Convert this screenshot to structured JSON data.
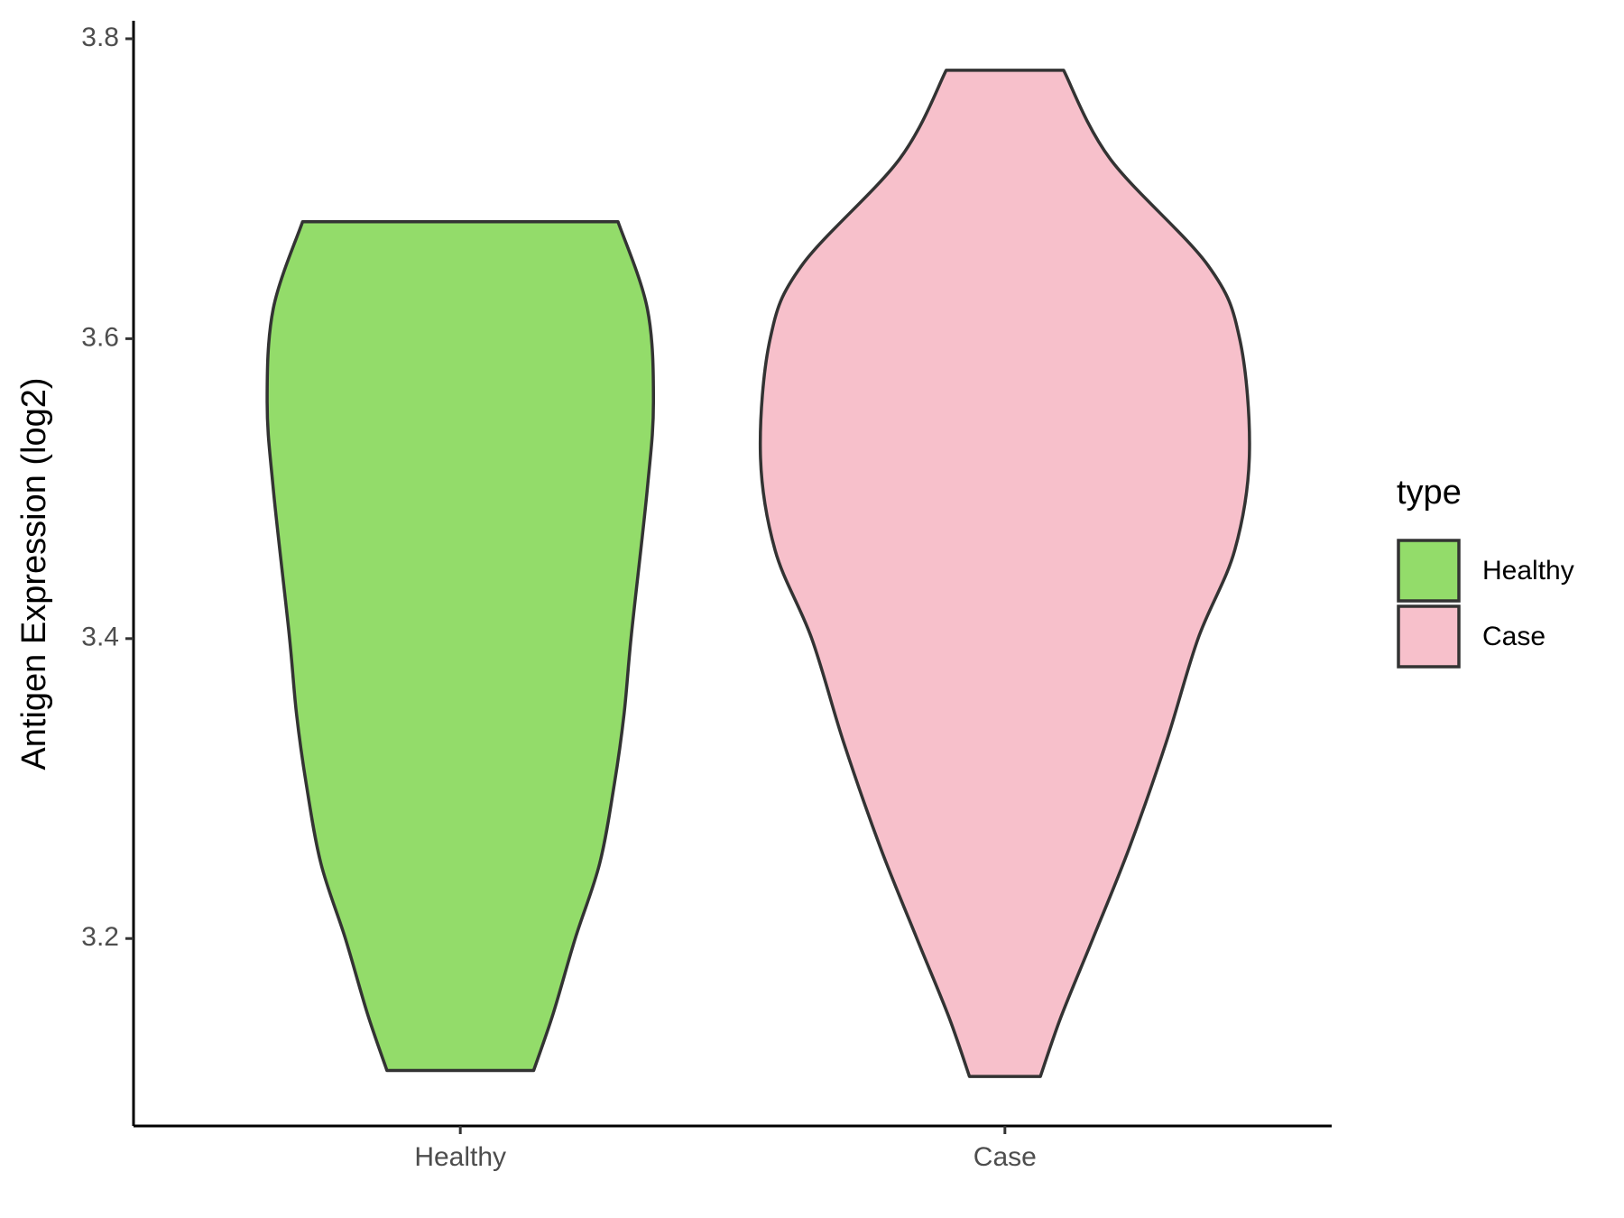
{
  "chart_data": {
    "type": "violin",
    "y_label": "Antigen Expression (log2)",
    "categories": [
      "Healthy",
      "Case"
    ],
    "legend_title": "type",
    "legend_position": "right",
    "ylim": [
      3.075,
      3.812
    ],
    "yticks": [
      3.2,
      3.4,
      3.6,
      3.8
    ],
    "series": [
      {
        "name": "Healthy",
        "color": "#93dc6a",
        "y": [
          3.678,
          3.62,
          3.558,
          3.5,
          3.403,
          3.35,
          3.303,
          3.25,
          3.2,
          3.15,
          3.112
        ],
        "density": [
          0.645,
          0.765,
          0.79,
          0.765,
          0.7,
          0.67,
          0.63,
          0.57,
          0.47,
          0.38,
          0.3
        ]
      },
      {
        "name": "Case",
        "color": "#f7c0cb",
        "y": [
          3.779,
          3.72,
          3.649,
          3.6,
          3.523,
          3.459,
          3.4,
          3.331,
          3.261,
          3.2,
          3.148,
          3.108
        ],
        "density": [
          0.24,
          0.43,
          0.83,
          0.96,
          1.0,
          0.94,
          0.79,
          0.66,
          0.51,
          0.36,
          0.23,
          0.145
        ]
      }
    ]
  }
}
